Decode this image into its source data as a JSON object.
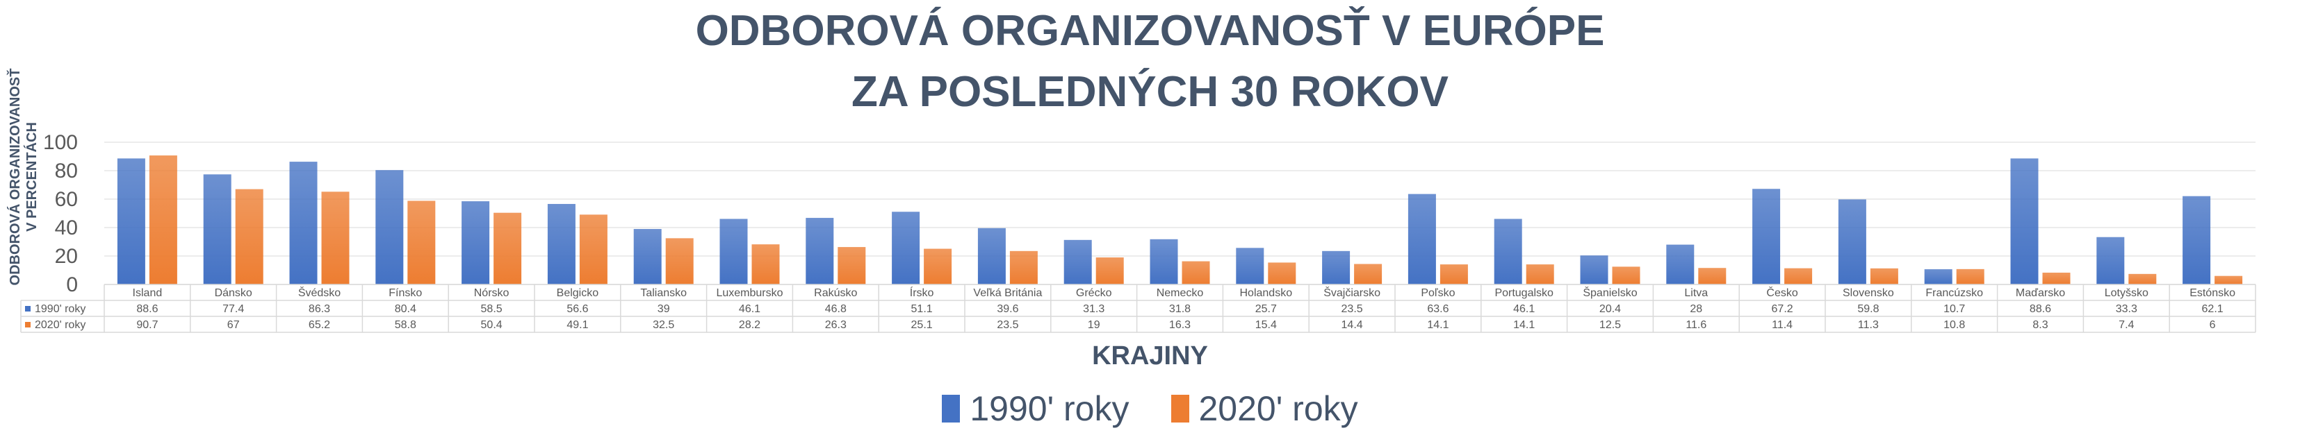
{
  "colors": {
    "series1": "#4472c4",
    "series2": "#ed7d31",
    "grid": "#e6e6e6",
    "title": "#44546a",
    "text": "#595959"
  },
  "chart_data": {
    "type": "bar",
    "title": "ODBOROVÁ ORGANIZOVANOSŤ V EURÓPE ZA POSLEDNÝCH 30 ROKOV",
    "title_lines": [
      "ODBOROVÁ ORGANIZOVANOSŤ V EURÓPE",
      "ZA POSLEDNÝCH 30 ROKOV"
    ],
    "ylabel_lines": [
      "ODBOROVÁ ORGANIZOVANOSŤ",
      "V PERCENTÁCH"
    ],
    "xlabel": "KRAJINY",
    "ylim": [
      0,
      100
    ],
    "yticks": [
      "0",
      "20",
      "40",
      "60",
      "80",
      "100"
    ],
    "grid": true,
    "legend_position": "bottom",
    "data_table": true,
    "categories": [
      "Island",
      "Dánsko",
      "Švédsko",
      "Fínsko",
      "Nórsko",
      "Belgicko",
      "Taliansko",
      "Luxembursko",
      "Rakúsko",
      "Írsko",
      "Veľká Británia",
      "Grécko",
      "Nemecko",
      "Holandsko",
      "Švajčiarsko",
      "Poľsko",
      "Portugalsko",
      "Španielsko",
      "Litva",
      "Česko",
      "Slovensko",
      "Francúzsko",
      "Maďarsko",
      "Lotyšsko",
      "Estónsko"
    ],
    "series": [
      {
        "name": "1990' roky",
        "values": [
          88.6,
          77.4,
          86.3,
          80.4,
          58.5,
          56.6,
          39,
          46.1,
          46.8,
          51.1,
          39.6,
          31.3,
          31.8,
          25.7,
          23.5,
          63.6,
          46.1,
          20.4,
          28,
          67.2,
          59.8,
          10.7,
          88.6,
          33.3,
          62.1
        ]
      },
      {
        "name": "2020' roky",
        "values": [
          90.7,
          67,
          65.2,
          58.8,
          50.4,
          49.1,
          32.5,
          28.2,
          26.3,
          25.1,
          23.5,
          19,
          16.3,
          15.4,
          14.4,
          14.1,
          14.1,
          12.5,
          11.6,
          11.4,
          11.3,
          10.8,
          8.3,
          7.4,
          6
        ]
      }
    ]
  }
}
